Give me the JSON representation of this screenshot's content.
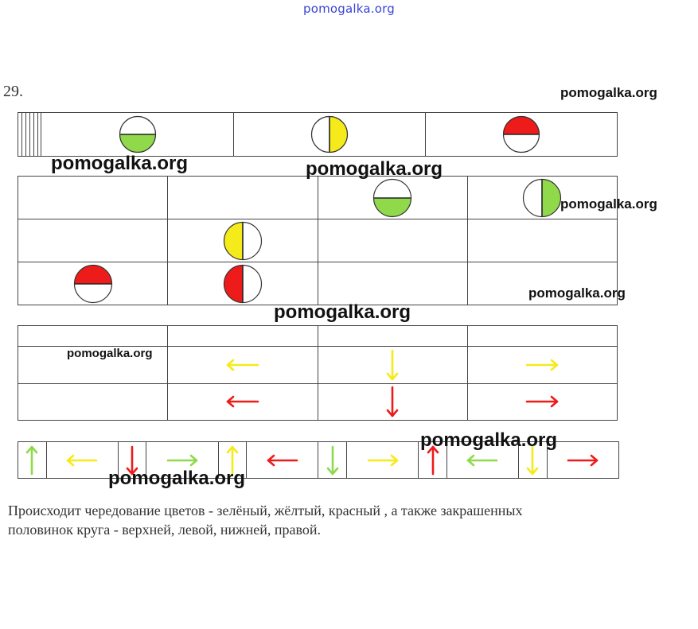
{
  "header": {
    "watermark": "pomogalka.org"
  },
  "problem": {
    "number": "29."
  },
  "watermarks": [
    "pomogalka.org",
    "pomogalka.org",
    "pomogalka.org",
    "pomogalka.org",
    "pomogalka.org",
    "pomogalka.org",
    "pomogalka.org",
    "pomogalka.org",
    "pomogalka.org"
  ],
  "colors": {
    "green": "#8fd94a",
    "yellow": "#f5ea1a",
    "red": "#ee1b1b",
    "pink": "#f08c8c",
    "outline": "#333333"
  },
  "row1": {
    "cells": [
      {
        "content": "empty"
      },
      {
        "content": "empty"
      },
      {
        "content": "empty"
      },
      {
        "content": "empty"
      },
      {
        "content": "empty"
      },
      {
        "content": "empty"
      },
      {
        "content": "circle",
        "color": "green",
        "half": "bottom"
      },
      {
        "content": "circle",
        "color": "yellow",
        "half": "right"
      },
      {
        "content": "circle",
        "color": "red",
        "half": "top"
      }
    ]
  },
  "grid2": {
    "rows": [
      [
        {
          "content": "empty"
        },
        {
          "content": "empty"
        },
        {
          "content": "circle",
          "color": "green",
          "half": "bottom"
        },
        {
          "content": "circle",
          "color": "green",
          "half": "right"
        }
      ],
      [
        {
          "content": "empty"
        },
        {
          "content": "circle",
          "color": "yellow",
          "half": "left"
        },
        {
          "content": "empty"
        },
        {
          "content": "empty"
        }
      ],
      [
        {
          "content": "circle",
          "color": "red",
          "half": "top"
        },
        {
          "content": "circle",
          "color": "red",
          "half": "left"
        },
        {
          "content": "empty"
        },
        {
          "content": "empty"
        }
      ]
    ]
  },
  "grid3": {
    "rows": [
      [
        {
          "content": "empty"
        },
        {
          "content": "arrow",
          "color": "yellow",
          "dir": "left"
        },
        {
          "content": "arrow",
          "color": "yellow",
          "dir": "down"
        },
        {
          "content": "arrow",
          "color": "yellow",
          "dir": "right"
        }
      ],
      [
        {
          "content": "empty"
        },
        {
          "content": "arrow",
          "color": "red",
          "dir": "left"
        },
        {
          "content": "arrow",
          "color": "red",
          "dir": "down"
        },
        {
          "content": "arrow",
          "color": "red",
          "dir": "right"
        }
      ]
    ]
  },
  "row4": {
    "cells": [
      {
        "color": "green",
        "dir": "up"
      },
      {
        "color": "yellow",
        "dir": "left"
      },
      {
        "color": "red",
        "dir": "down"
      },
      {
        "color": "green",
        "dir": "right"
      },
      {
        "color": "yellow",
        "dir": "up"
      },
      {
        "color": "red",
        "dir": "left"
      },
      {
        "color": "green",
        "dir": "down"
      },
      {
        "color": "yellow",
        "dir": "right"
      },
      {
        "color": "red",
        "dir": "up"
      },
      {
        "color": "green",
        "dir": "left"
      },
      {
        "color": "yellow",
        "dir": "down"
      },
      {
        "color": "red",
        "dir": "right"
      }
    ]
  },
  "explanation": {
    "line1": "Происходит чередование цветов - зелёный, жёлтый, красный , а также закрашенных",
    "line2": "половинок круга - верхней, левой, нижней, правой."
  }
}
